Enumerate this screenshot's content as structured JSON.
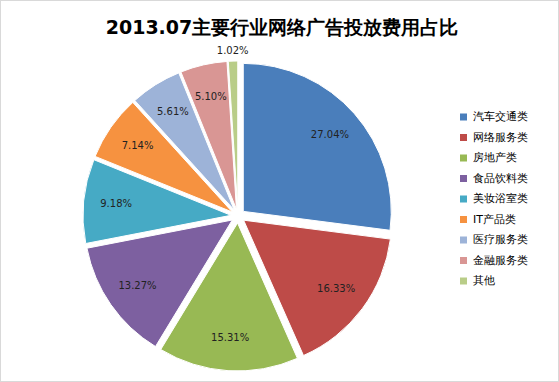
{
  "chart_data": {
    "type": "pie",
    "title": "2013.07主要行业网络广告投放费用占比",
    "categories": [
      "汽车交通类",
      "网络服务类",
      "房地产类",
      "食品饮料类",
      "美妆浴室类",
      "IT产品类",
      "医疗服务类",
      "金融服务类",
      "其他"
    ],
    "values": [
      27.04,
      16.33,
      15.31,
      13.27,
      9.18,
      7.14,
      5.61,
      5.1,
      1.02
    ],
    "value_labels": [
      "27.04%",
      "16.33%",
      "15.31%",
      "13.27%",
      "9.18%",
      "7.14%",
      "5.61%",
      "5.10%",
      "1.02%"
    ],
    "colors": [
      "#4a7ebb",
      "#be4b48",
      "#98b954",
      "#7d60a0",
      "#46aac5",
      "#f69240",
      "#9db3d8",
      "#d99694",
      "#b9cd88"
    ],
    "data_labels": true,
    "legend": "right"
  }
}
